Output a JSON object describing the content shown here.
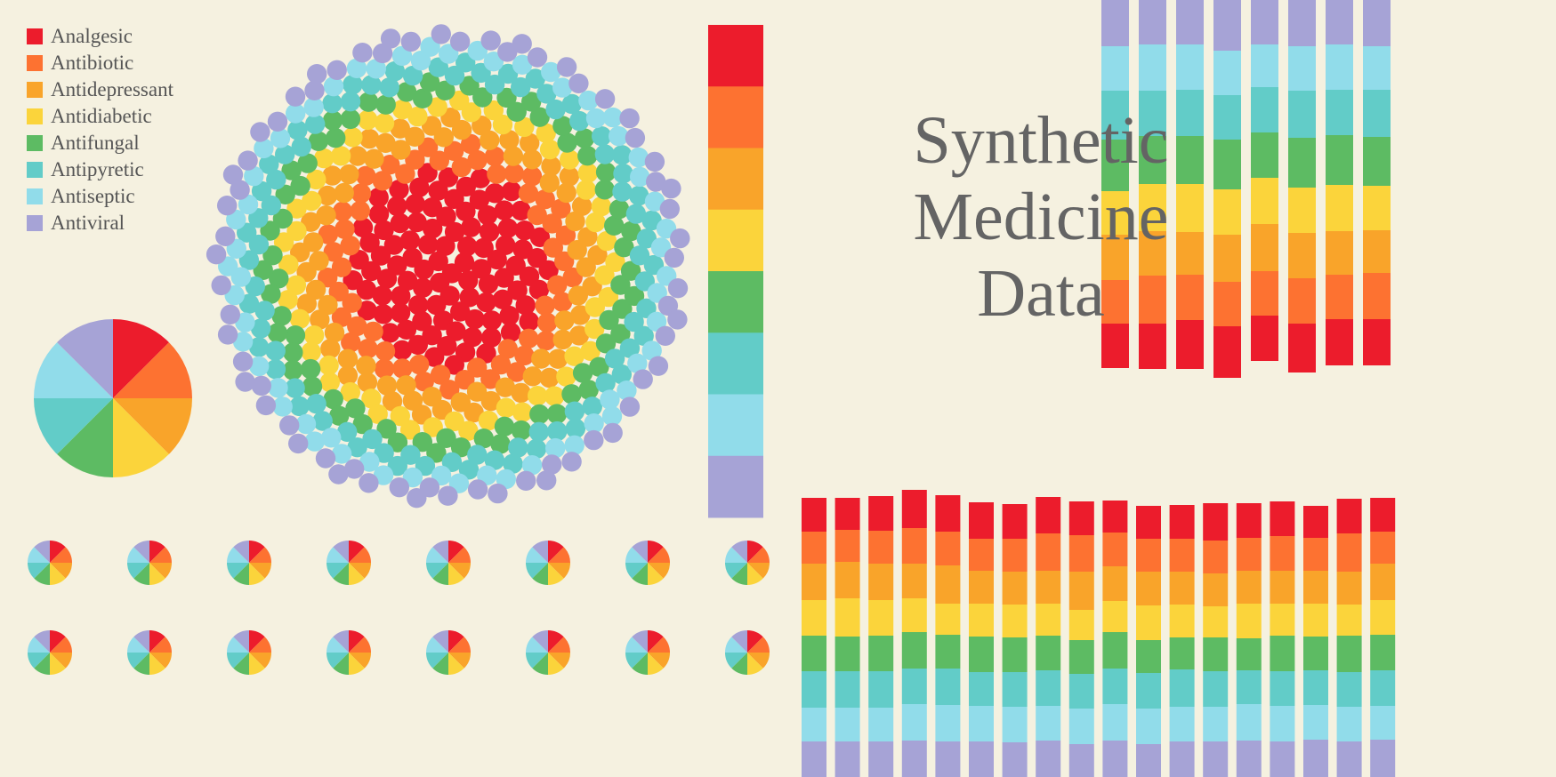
{
  "title_lines": [
    "Synthetic",
    "Medicine",
    "Data"
  ],
  "categories": [
    "Analgesic",
    "Antibiotic",
    "Antidepressant",
    "Antidiabetic",
    "Antifungal",
    "Antipyretic",
    "Antiseptic",
    "Antiviral"
  ],
  "colors": {
    "Analgesic": "#EC1C2C",
    "Antibiotic": "#FD7231",
    "Antidepressant": "#F9A42A",
    "Antidiabetic": "#FBD43B",
    "Antifungal": "#5DBB63",
    "Antipyretic": "#62CCC8",
    "Antiseptic": "#91DCEA",
    "Antiviral": "#A6A3D6"
  },
  "background": "#F5F1E0",
  "chart_data": [
    {
      "type": "bubble_rings",
      "description_free": true,
      "rings": [
        {
          "category": "Analgesic",
          "count": 100
        },
        {
          "category": "Antibiotic",
          "count": 60
        },
        {
          "category": "Antidepressant",
          "count": 70
        },
        {
          "category": "Antidiabetic",
          "count": 55
        },
        {
          "category": "Antifungal",
          "count": 70
        },
        {
          "category": "Antipyretic",
          "count": 80
        },
        {
          "category": "Antiseptic",
          "count": 60
        },
        {
          "category": "Antiviral",
          "count": 65
        }
      ]
    },
    {
      "type": "pie",
      "slices": [
        {
          "category": "Analgesic",
          "value": 1
        },
        {
          "category": "Antibiotic",
          "value": 1
        },
        {
          "category": "Antidepressant",
          "value": 1
        },
        {
          "category": "Antidiabetic",
          "value": 1
        },
        {
          "category": "Antifungal",
          "value": 1
        },
        {
          "category": "Antipyretic",
          "value": 1
        },
        {
          "category": "Antiseptic",
          "value": 1
        },
        {
          "category": "Antiviral",
          "value": 1
        }
      ]
    },
    {
      "type": "stacked_bar",
      "series_order": [
        "Analgesic",
        "Antibiotic",
        "Antidepressant",
        "Antidiabetic",
        "Antifungal",
        "Antipyretic",
        "Antiseptic",
        "Antiviral"
      ],
      "values": [
        [
          1,
          1,
          1,
          1,
          1,
          1,
          1,
          1
        ]
      ]
    },
    {
      "type": "stacked_bar",
      "series_order": [
        "Antiviral",
        "Antiseptic",
        "Antipyretic",
        "Antifungal",
        "Antidiabetic",
        "Antidepressant",
        "Antibiotic",
        "Analgesic"
      ],
      "bars": [
        [
          52,
          50,
          55,
          58,
          49,
          51,
          49,
          50
        ],
        [
          50,
          52,
          51,
          54,
          53,
          50,
          54,
          51
        ],
        [
          50,
          51,
          52,
          54,
          54,
          48,
          51,
          55
        ],
        [
          57,
          50,
          50,
          56,
          51,
          53,
          50,
          58
        ],
        [
          50,
          48,
          51,
          51,
          52,
          53,
          50,
          51
        ],
        [
          52,
          50,
          53,
          56,
          51,
          51,
          51,
          55
        ],
        [
          50,
          51,
          51,
          56,
          52,
          49,
          50,
          52
        ],
        [
          52,
          49,
          53,
          55,
          50,
          48,
          52,
          52
        ]
      ]
    },
    {
      "type": "stacked_bar",
      "series_order": [
        "Analgesic",
        "Antibiotic",
        "Antidepressant",
        "Antidiabetic",
        "Antifungal",
        "Antipyretic",
        "Antiseptic",
        "Antiviral"
      ],
      "bars": [
        [
          38,
          36,
          41,
          40,
          40,
          41,
          38,
          40
        ],
        [
          36,
          36,
          41,
          43,
          39,
          41,
          38,
          40
        ],
        [
          39,
          37,
          41,
          40,
          40,
          41,
          38,
          40
        ],
        [
          43,
          40,
          39,
          38,
          41,
          40,
          41,
          41
        ],
        [
          41,
          38,
          43,
          35,
          38,
          41,
          41,
          40
        ],
        [
          41,
          36,
          37,
          37,
          40,
          38,
          40,
          40
        ],
        [
          39,
          37,
          37,
          37,
          39,
          39,
          40,
          39
        ],
        [
          41,
          42,
          37,
          36,
          39,
          40,
          39,
          41
        ],
        [
          38,
          41,
          43,
          34,
          38,
          39,
          40,
          37
        ],
        [
          36,
          38,
          39,
          35,
          41,
          40,
          41,
          41
        ],
        [
          37,
          37,
          38,
          39,
          37,
          40,
          40,
          37
        ],
        [
          38,
          37,
          37,
          37,
          36,
          42,
          39,
          40
        ],
        [
          42,
          37,
          37,
          35,
          38,
          40,
          39,
          40
        ],
        [
          39,
          37,
          37,
          39,
          36,
          38,
          41,
          41
        ],
        [
          39,
          39,
          37,
          36,
          40,
          39,
          40,
          40
        ],
        [
          36,
          37,
          37,
          37,
          38,
          39,
          39,
          42
        ],
        [
          39,
          43,
          37,
          35,
          41,
          39,
          39,
          40
        ],
        [
          38,
          36,
          41,
          39,
          40,
          40,
          38,
          42
        ]
      ]
    },
    {
      "type": "pie_grid",
      "rows": 2,
      "cols": 8,
      "slices": [
        {
          "category": "Analgesic",
          "value": 1
        },
        {
          "category": "Antibiotic",
          "value": 1
        },
        {
          "category": "Antidepressant",
          "value": 1
        },
        {
          "category": "Antidiabetic",
          "value": 1
        },
        {
          "category": "Antifungal",
          "value": 1
        },
        {
          "category": "Antipyretic",
          "value": 1
        },
        {
          "category": "Antiseptic",
          "value": 1
        },
        {
          "category": "Antiviral",
          "value": 1
        }
      ]
    }
  ]
}
